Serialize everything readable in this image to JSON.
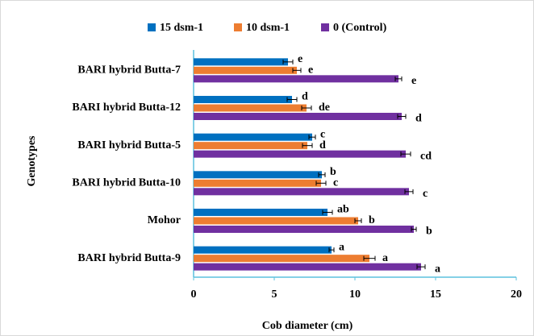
{
  "chart_data": {
    "type": "bar",
    "orientation": "horizontal",
    "xlabel": "Cob diameter (cm)",
    "ylabel": "Genotypes",
    "categories": [
      "BARI hybrid Butta-7",
      "BARI hybrid Butta-12",
      "BARI hybrid Butta-5",
      "BARI hybrid Butta-10",
      "Mohor",
      "BARI hybrid Butta-9"
    ],
    "series": [
      {
        "name": "15 dsm-1",
        "color": "#0070c0",
        "values": [
          5.85,
          6.1,
          7.35,
          7.95,
          8.3,
          8.55
        ],
        "errors": [
          0.3,
          0.3,
          0.2,
          0.2,
          0.3,
          0.15
        ],
        "labels": [
          "e",
          "d",
          "c",
          "b",
          "ab",
          "a"
        ]
      },
      {
        "name": "10 dsm-1",
        "color": "#ed7d31",
        "values": [
          6.4,
          7.0,
          7.05,
          7.9,
          10.2,
          10.9
        ],
        "errors": [
          0.25,
          0.3,
          0.3,
          0.3,
          0.2,
          0.35
        ],
        "labels": [
          "e",
          "de",
          "d",
          "c",
          "b",
          "a"
        ]
      },
      {
        "name": "0 (Control)",
        "color": "#7030a0",
        "values": [
          12.7,
          12.9,
          13.15,
          13.35,
          13.65,
          14.1
        ],
        "errors": [
          0.2,
          0.25,
          0.3,
          0.25,
          0.15,
          0.25
        ],
        "labels": [
          "e",
          "d",
          "cd",
          "c",
          "b",
          "a"
        ]
      }
    ],
    "xlim": [
      0,
      20
    ],
    "xticks": [
      0,
      5,
      10,
      15,
      20
    ],
    "legend": "top"
  }
}
